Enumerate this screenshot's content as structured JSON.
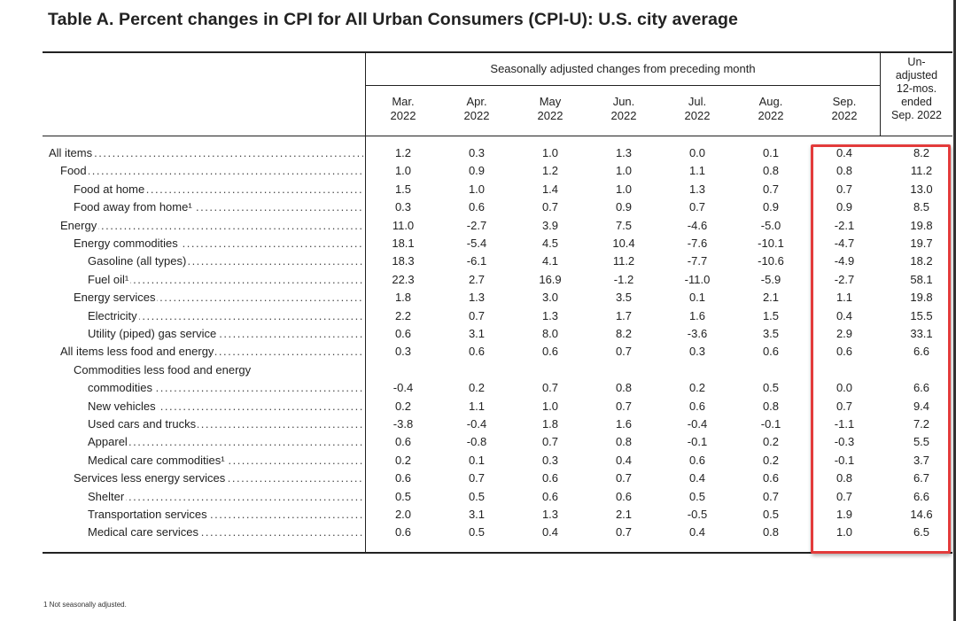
{
  "title": "Table A. Percent changes in CPI for All Urban Consumers (CPI-U): U.S. city average",
  "header": {
    "seasonally_adjusted": "Seasonally adjusted changes from preceding month",
    "unadjusted": [
      "Un-",
      "adjusted",
      "12-mos.",
      "ended",
      "Sep. 2022"
    ],
    "months": [
      [
        "Mar.",
        "2022"
      ],
      [
        "Apr.",
        "2022"
      ],
      [
        "May",
        "2022"
      ],
      [
        "Jun.",
        "2022"
      ],
      [
        "Jul.",
        "2022"
      ],
      [
        "Aug.",
        "2022"
      ],
      [
        "Sep.",
        "2022"
      ]
    ]
  },
  "rows": [
    {
      "label": "All items",
      "indent": 0,
      "values": [
        "1.2",
        "0.3",
        "1.0",
        "1.3",
        "0.0",
        "0.1",
        "0.4",
        "8.2"
      ]
    },
    {
      "label": "Food",
      "indent": 1,
      "values": [
        "1.0",
        "0.9",
        "1.2",
        "1.0",
        "1.1",
        "0.8",
        "0.8",
        "11.2"
      ]
    },
    {
      "label": "Food at home",
      "indent": 2,
      "values": [
        "1.5",
        "1.0",
        "1.4",
        "1.0",
        "1.3",
        "0.7",
        "0.7",
        "13.0"
      ]
    },
    {
      "label": "Food away from home¹",
      "indent": 2,
      "values": [
        "0.3",
        "0.6",
        "0.7",
        "0.9",
        "0.7",
        "0.9",
        "0.9",
        "8.5"
      ]
    },
    {
      "label": "Energy",
      "indent": 1,
      "values": [
        "11.0",
        "-2.7",
        "3.9",
        "7.5",
        "-4.6",
        "-5.0",
        "-2.1",
        "19.8"
      ]
    },
    {
      "label": "Energy commodities",
      "indent": 2,
      "values": [
        "18.1",
        "-5.4",
        "4.5",
        "10.4",
        "-7.6",
        "-10.1",
        "-4.7",
        "19.7"
      ]
    },
    {
      "label": "Gasoline (all types)",
      "indent": 3,
      "values": [
        "18.3",
        "-6.1",
        "4.1",
        "11.2",
        "-7.7",
        "-10.6",
        "-4.9",
        "18.2"
      ]
    },
    {
      "label": "Fuel oil¹",
      "indent": 3,
      "values": [
        "22.3",
        "2.7",
        "16.9",
        "-1.2",
        "-11.0",
        "-5.9",
        "-2.7",
        "58.1"
      ]
    },
    {
      "label": "Energy services",
      "indent": 2,
      "values": [
        "1.8",
        "1.3",
        "3.0",
        "3.5",
        "0.1",
        "2.1",
        "1.1",
        "19.8"
      ]
    },
    {
      "label": "Electricity",
      "indent": 3,
      "values": [
        "2.2",
        "0.7",
        "1.3",
        "1.7",
        "1.6",
        "1.5",
        "0.4",
        "15.5"
      ]
    },
    {
      "label": "Utility (piped) gas service",
      "indent": 3,
      "values": [
        "0.6",
        "3.1",
        "8.0",
        "8.2",
        "-3.6",
        "3.5",
        "2.9",
        "33.1"
      ]
    },
    {
      "label": "All items less food and energy",
      "indent": 1,
      "values": [
        "0.3",
        "0.6",
        "0.6",
        "0.7",
        "0.3",
        "0.6",
        "0.6",
        "6.6"
      ]
    },
    {
      "label": "Commodities less food and energy",
      "indent": 2,
      "values": [
        "",
        "",
        "",
        "",
        "",
        "",
        "",
        ""
      ]
    },
    {
      "label": "commodities",
      "indent": 3,
      "values": [
        "-0.4",
        "0.2",
        "0.7",
        "0.8",
        "0.2",
        "0.5",
        "0.0",
        "6.6"
      ]
    },
    {
      "label": "New vehicles",
      "indent": 3,
      "values": [
        "0.2",
        "1.1",
        "1.0",
        "0.7",
        "0.6",
        "0.8",
        "0.7",
        "9.4"
      ]
    },
    {
      "label": "Used cars and trucks",
      "indent": 3,
      "values": [
        "-3.8",
        "-0.4",
        "1.8",
        "1.6",
        "-0.4",
        "-0.1",
        "-1.1",
        "7.2"
      ]
    },
    {
      "label": "Apparel",
      "indent": 3,
      "values": [
        "0.6",
        "-0.8",
        "0.7",
        "0.8",
        "-0.1",
        "0.2",
        "-0.3",
        "5.5"
      ]
    },
    {
      "label": "Medical care commodities¹",
      "indent": 3,
      "values": [
        "0.2",
        "0.1",
        "0.3",
        "0.4",
        "0.6",
        "0.2",
        "-0.1",
        "3.7"
      ]
    },
    {
      "label": "Services less energy services",
      "indent": 2,
      "values": [
        "0.6",
        "0.7",
        "0.6",
        "0.7",
        "0.4",
        "0.6",
        "0.8",
        "6.7"
      ]
    },
    {
      "label": "Shelter",
      "indent": 3,
      "values": [
        "0.5",
        "0.5",
        "0.6",
        "0.6",
        "0.5",
        "0.7",
        "0.7",
        "6.6"
      ]
    },
    {
      "label": "Transportation services",
      "indent": 3,
      "values": [
        "2.0",
        "3.1",
        "1.3",
        "2.1",
        "-0.5",
        "0.5",
        "1.9",
        "14.6"
      ]
    },
    {
      "label": "Medical care services",
      "indent": 3,
      "values": [
        "0.6",
        "0.5",
        "0.4",
        "0.7",
        "0.4",
        "0.8",
        "1.0",
        "6.5"
      ]
    }
  ],
  "footnote": "1  Not seasonally adjusted.",
  "colors": {
    "highlight": "#e33b3b",
    "text": "#222222"
  }
}
